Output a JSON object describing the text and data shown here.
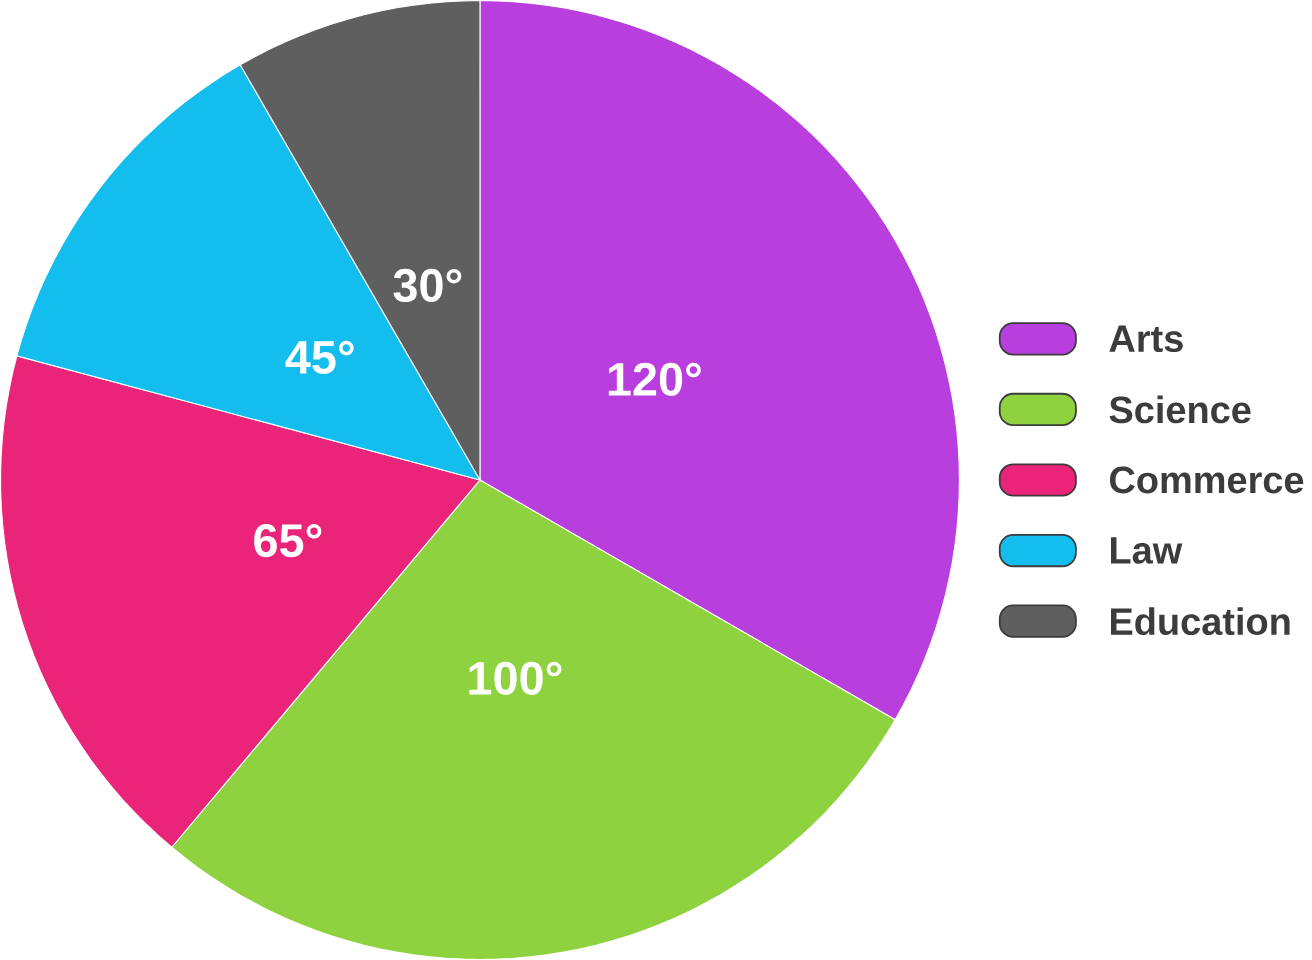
{
  "chart_data": {
    "type": "pie",
    "categories": [
      "Arts",
      "Science",
      "Commerce",
      "Law",
      "Education"
    ],
    "values": [
      120,
      100,
      65,
      45,
      30
    ],
    "colors": [
      "#b83fde",
      "#8fd23f",
      "#ea2479",
      "#13bdee",
      "#5f5f5f"
    ],
    "value_labels": [
      "120°",
      "100°",
      "65°",
      "45°",
      "30°"
    ],
    "legend": "right"
  }
}
